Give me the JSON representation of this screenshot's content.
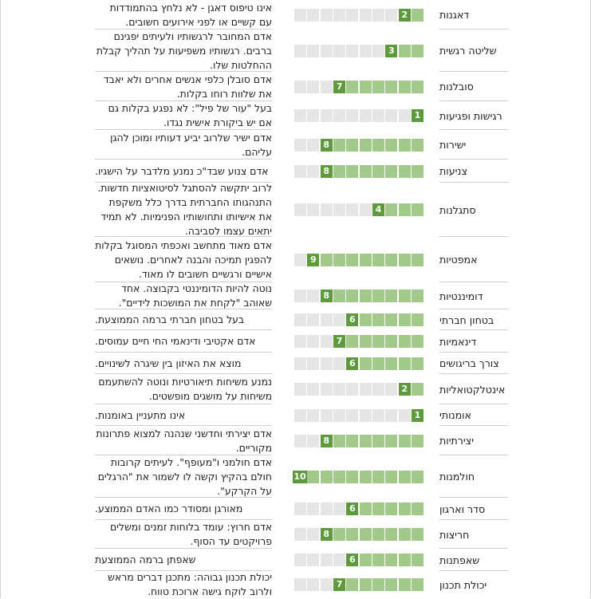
{
  "palette": {
    "filled": "#a3c98a",
    "score": "#5c9a3b",
    "empty": "#e5e5e5"
  },
  "scale_max": 10,
  "rows": [
    {
      "trait": "דאגנות",
      "score": 2,
      "description": "אינו טיפוס דאגן - לא נלחץ בהתמודדות עם קשיים או לפני אירועים חשובים."
    },
    {
      "trait": "שליטה רגשית",
      "score": 3,
      "description": "אדם המחובר לרגשותיו ולעיתים יפגינם ברבים. רגשותיו משפיעות על תהליך קבלת ההחלטות שלו."
    },
    {
      "trait": "סובלנות",
      "score": 7,
      "description": "אדם סובלן כלפי אנשים אחרים ולא יאבד את שלוות רוחו בקלות."
    },
    {
      "trait": "רגישות ופגיעות",
      "score": 1,
      "description": "בעל \"עור של פיל\": לא נפגע בקלות גם אם יש ביקורת אישית נגדו."
    },
    {
      "trait": "ישירות",
      "score": 8,
      "description": "אדם ישיר שלרוב יביע דעותיו ומוכן להגן עליהם."
    },
    {
      "trait": "צניעות",
      "score": 8,
      "description": "אדם צנוע שבד\"כ נמנע מלדבר על הישגיו."
    },
    {
      "trait": "סתגלנות",
      "score": 4,
      "description": "לרוב יתקשה להסתגל לסיטואציות חדשות. התנהגותו החברתית בדרך כלל משקפת את אישיותו ותחושותיו הפנימיות. לא תמיד יתאים עצמו לסביבה."
    },
    {
      "trait": "אמפטיות",
      "score": 9,
      "description": "אדם מאוד מתחשב ואכפתי המסוגל בקלות להפגין תמיכה והבנה לאחרים. נושאים אישיים ורגשיים חשובים לו מאוד."
    },
    {
      "trait": "דומיננטיות",
      "score": 8,
      "description": "נוטה להיות הדומיננטי בקבוצה. אחד שאוהב \"לקחת את המושכות לידיים\"."
    },
    {
      "trait": "בטחון חברתי",
      "score": 6,
      "description": "בעל בטחון חברתי ברמה הממוצעת."
    },
    {
      "trait": "דינאמיות",
      "score": 7,
      "description": "אדם אקטיבי ודינאמי החי חיים עמוסים."
    },
    {
      "trait": "צורך בריגושים",
      "score": 6,
      "description": "מוצא את האיזון בין שיגרה לשינויים."
    },
    {
      "trait": "אינטלקטואליות",
      "score": 2,
      "description": "נמנע משיחות תיאורטיות ונוטה להשתעמם משיחות על מושגים מופשטים."
    },
    {
      "trait": "אומנותי",
      "score": 1,
      "description": "אינו מתעניין באומנות."
    },
    {
      "trait": "יצירתיות",
      "score": 8,
      "description": "אדם יצירתי וחדשני שנהנה למצוא פתרונות מקוריים."
    },
    {
      "trait": "חולמנות",
      "score": 10,
      "description": "אדם חולמני ו\"מעופף\". לעיתים קרובות חולם בהקיץ וקשה לו לשמור את \"הרגלים על הקרקע\"."
    },
    {
      "trait": "סדר וארגון",
      "score": 6,
      "description": "מאורגן ומסודר כמו האדם הממוצע."
    },
    {
      "trait": "חריצות",
      "score": 8,
      "description": "אדם חרוץ: עומד בלוחות זמנים ומשלים פרויקטים עד הסוף."
    },
    {
      "trait": "שאפתנות",
      "score": 6,
      "description": "שאפתן ברמה הממוצעת"
    },
    {
      "trait": "יכולת תכנון",
      "score": 7,
      "description": "יכולת תכנון גבוהה: מתכנן דברים מראש ולרוב לוקח גישה ארוכת טווח."
    }
  ]
}
